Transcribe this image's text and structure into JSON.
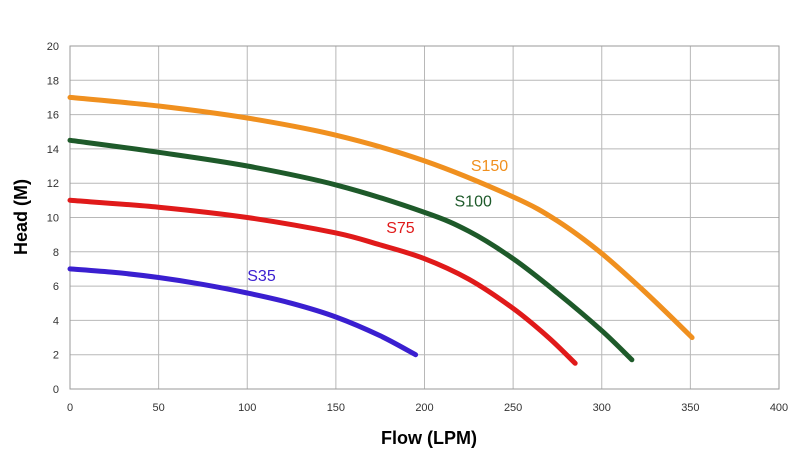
{
  "chart_data": {
    "type": "line",
    "title": "",
    "xlabel": "Flow (LPM)",
    "ylabel": "Head (M)",
    "xlim": [
      0,
      400
    ],
    "ylim": [
      0,
      20
    ],
    "x_ticks": [
      0,
      50,
      100,
      150,
      200,
      250,
      300,
      350,
      400
    ],
    "y_ticks": [
      0,
      2,
      4,
      6,
      8,
      10,
      12,
      14,
      16,
      18,
      20
    ],
    "grid": true,
    "legend": "none",
    "series": [
      {
        "name": "S35",
        "color": "#3a1fd0",
        "x": [
          0,
          25,
          50,
          75,
          100,
          125,
          150,
          175,
          195
        ],
        "y": [
          7.0,
          6.8,
          6.5,
          6.1,
          5.6,
          5.0,
          4.2,
          3.1,
          2.0
        ]
      },
      {
        "name": "S75",
        "color": "#e01a1a",
        "x": [
          0,
          50,
          100,
          150,
          175,
          200,
          225,
          250,
          270,
          285
        ],
        "y": [
          11.0,
          10.6,
          10.0,
          9.1,
          8.4,
          7.6,
          6.4,
          4.7,
          3.0,
          1.5
        ]
      },
      {
        "name": "S100",
        "color": "#1e5a2a",
        "x": [
          0,
          50,
          100,
          150,
          200,
          225,
          250,
          275,
          300,
          317
        ],
        "y": [
          14.5,
          13.8,
          13.0,
          11.9,
          10.3,
          9.2,
          7.6,
          5.6,
          3.4,
          1.7
        ]
      },
      {
        "name": "S150",
        "color": "#f0901f",
        "x": [
          0,
          50,
          100,
          150,
          200,
          250,
          275,
          300,
          325,
          351
        ],
        "y": [
          17.0,
          16.5,
          15.8,
          14.8,
          13.3,
          11.2,
          9.8,
          7.9,
          5.6,
          3.0
        ]
      }
    ]
  }
}
